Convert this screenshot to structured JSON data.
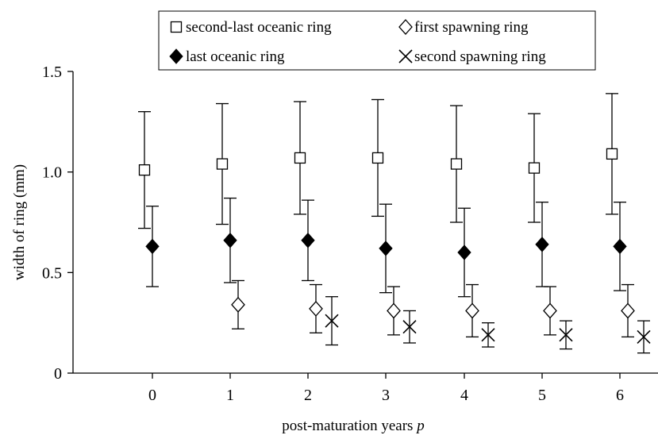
{
  "chart_data": {
    "type": "scatter",
    "xlabel": "post-maturation years",
    "xlabel_var": "p",
    "ylabel": "width of ring (mm)",
    "ylim": [
      0,
      1.5
    ],
    "yticks": [
      0,
      0.5,
      1.0,
      1.5
    ],
    "ytick_labels": [
      "0",
      "0.5",
      "1.0",
      "1.5"
    ],
    "x_categories": [
      "0",
      "1",
      "2",
      "3",
      "4",
      "5",
      "6"
    ],
    "grid": false,
    "legend_placement": "top",
    "series": [
      {
        "name": "second-last oceanic ring",
        "marker": "open-square",
        "x": [
          0,
          1,
          2,
          3,
          4,
          5,
          6
        ],
        "y": [
          1.01,
          1.04,
          1.07,
          1.07,
          1.04,
          1.02,
          1.09
        ],
        "err": [
          0.29,
          0.3,
          0.28,
          0.29,
          0.29,
          0.27,
          0.3
        ]
      },
      {
        "name": "last oceanic ring",
        "marker": "filled-diamond",
        "x": [
          0,
          1,
          2,
          3,
          4,
          5,
          6
        ],
        "y": [
          0.63,
          0.66,
          0.66,
          0.62,
          0.6,
          0.64,
          0.63
        ],
        "err": [
          0.2,
          0.21,
          0.2,
          0.22,
          0.22,
          0.21,
          0.22
        ]
      },
      {
        "name": "first spawning ring",
        "marker": "open-diamond",
        "x": [
          1,
          2,
          3,
          4,
          5,
          6
        ],
        "y": [
          0.34,
          0.32,
          0.31,
          0.31,
          0.31,
          0.31
        ],
        "err": [
          0.12,
          0.12,
          0.12,
          0.13,
          0.12,
          0.13
        ]
      },
      {
        "name": "second spawning ring",
        "marker": "x-cross",
        "x": [
          2,
          3,
          4,
          5,
          6
        ],
        "y": [
          0.26,
          0.23,
          0.19,
          0.19,
          0.18
        ],
        "err": [
          0.12,
          0.08,
          0.06,
          0.07,
          0.08
        ]
      }
    ]
  }
}
